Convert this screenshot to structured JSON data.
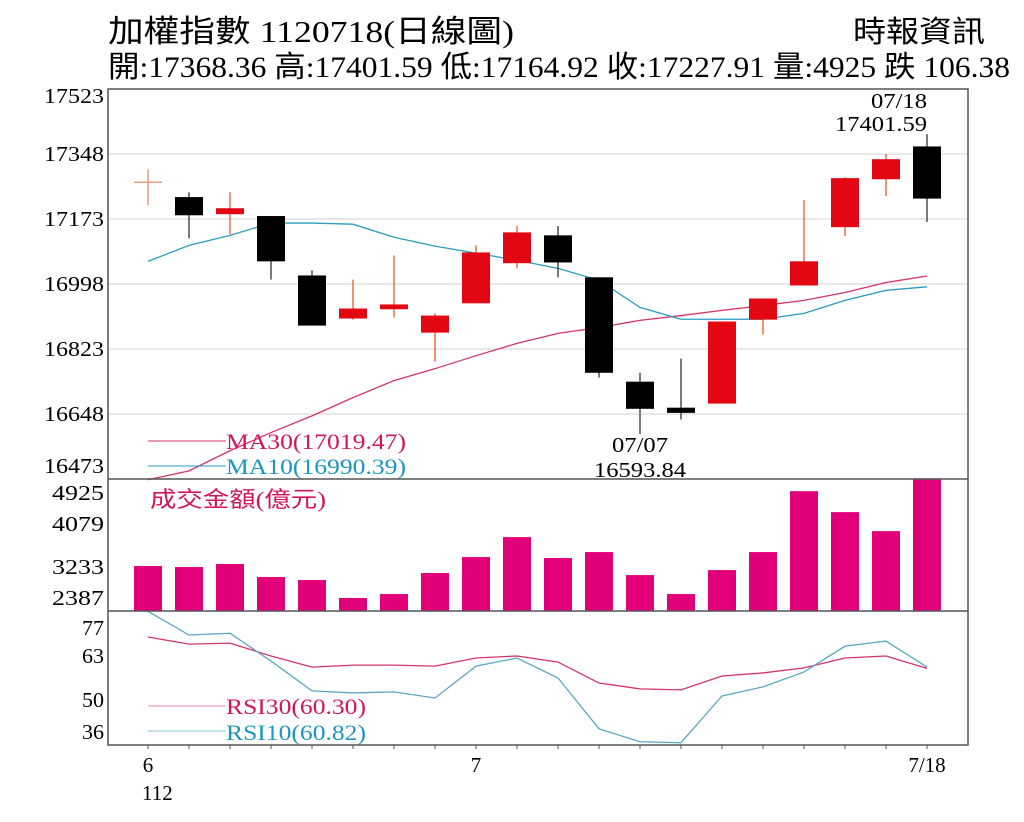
{
  "header": {
    "title": "加權指數 1120718(日線圖)",
    "source": "時報資訊",
    "stats": "開:17368.36 高:17401.59 低:17164.92 收:17227.91 量:4925 跌 106.38"
  },
  "colors": {
    "up": "#e30613",
    "down": "#000000",
    "volume": "#e2007a",
    "ma30": "#d6336c",
    "ma10": "#2a9cc0",
    "rsi30": "#d6336c",
    "rsi10": "#5aa8c0",
    "ma30_text": "#d4145a",
    "ma10_text": "#1a96c0"
  },
  "chart_data": [
    {
      "type": "candlestick",
      "title": "加權指數 1120718(日線圖)",
      "ylim": [
        16473,
        17523
      ],
      "yticks": [
        "17523",
        "17348",
        "17173",
        "16998",
        "16823",
        "16648",
        "16473"
      ],
      "ytick_values": [
        17523,
        17348,
        17173,
        16998,
        16823,
        16648,
        16473
      ],
      "ohlc": [
        [
          17272,
          17307,
          17210,
          17272
        ],
        [
          17232,
          17245,
          17121,
          17183
        ],
        [
          17186,
          17245,
          17132,
          17202
        ],
        [
          17181,
          17181,
          17010,
          17059
        ],
        [
          17021,
          17035,
          16886,
          16886
        ],
        [
          16905,
          17010,
          16902,
          16932
        ],
        [
          16930,
          17075,
          16908,
          16943
        ],
        [
          16867,
          16919,
          16789,
          16913
        ],
        [
          16946,
          17102,
          16946,
          17083
        ],
        [
          17054,
          17154,
          17040,
          17137
        ],
        [
          17129,
          17154,
          17016,
          17056
        ],
        [
          17016,
          17016,
          16746,
          16759
        ],
        [
          16735,
          16759,
          16593.84,
          16662
        ],
        [
          16665,
          16797,
          16633,
          16651
        ],
        [
          16676,
          16897,
          16676,
          16897
        ],
        [
          16902,
          16959,
          16862,
          16959
        ],
        [
          16994,
          17224,
          16994,
          17059
        ],
        [
          17151,
          17286,
          17127,
          17283
        ],
        [
          17280,
          17348,
          17235,
          17334
        ],
        [
          17368.36,
          17401.59,
          17164.92,
          17227.91
        ]
      ],
      "series": [
        {
          "name": "MA30",
          "label": "MA30(17019.47)",
          "values": [
            16471,
            16495,
            16549,
            16598,
            16643,
            16692,
            16738,
            16770,
            16805,
            16838,
            16865,
            16881,
            16900,
            16913,
            16927,
            16940,
            16954,
            16975,
            17002,
            17019.47
          ]
        },
        {
          "name": "MA10",
          "label": "MA10(16990.39)",
          "values": [
            17059,
            17102,
            17129,
            17162,
            17162,
            17159,
            17124,
            17100,
            17081,
            17062,
            17040,
            17008,
            16935,
            16903,
            16903,
            16903,
            16919,
            16954,
            16981,
            16990.39
          ]
        }
      ],
      "annotations": [
        {
          "index": 19,
          "date": "07/18",
          "value": "17401.59",
          "position": "above"
        },
        {
          "index": 12,
          "date": "07/07",
          "value": "16593.84",
          "position": "below"
        }
      ]
    },
    {
      "type": "bar",
      "title": "成交金額(億元)",
      "ylim": [
        2387,
        4925
      ],
      "yticks": [
        "4925",
        "4079",
        "3233",
        "2387"
      ],
      "ytick_values": [
        4925,
        4079,
        3233,
        2387
      ],
      "values": [
        3251,
        3232,
        3290,
        3040,
        2982,
        2637,
        2713,
        3117,
        3424,
        3808,
        3405,
        3520,
        3078,
        2713,
        3174,
        3520,
        4691,
        4288,
        3923,
        4925
      ]
    },
    {
      "type": "line",
      "title": "RSI",
      "ylim": [
        30,
        83
      ],
      "yticks": [
        "77",
        "63",
        "50",
        "36"
      ],
      "ytick_values": [
        77,
        63,
        50,
        36
      ],
      "series": [
        {
          "name": "RSI30",
          "label": "RSI30(60.30)",
          "values": [
            72.7,
            69.9,
            70.3,
            65.2,
            60.8,
            61.6,
            61.6,
            61.2,
            64.4,
            65.2,
            62.8,
            54.5,
            52.2,
            51.8,
            57.3,
            58.5,
            60.5,
            64.4,
            65.2,
            60.3
          ]
        },
        {
          "name": "RSI10",
          "label": "RSI10(60.82)",
          "values": [
            82.9,
            73.5,
            74.2,
            63.2,
            51.4,
            50.6,
            51.0,
            48.6,
            61.2,
            64.4,
            56.5,
            36.4,
            31.3,
            30.9,
            49.4,
            53.0,
            58.9,
            69.1,
            71.1,
            60.82
          ]
        }
      ]
    }
  ],
  "xaxis": {
    "labels": [
      {
        "index": 0,
        "text": "6",
        "sub": "112"
      },
      {
        "index": 8,
        "text": "7",
        "sub": ""
      },
      {
        "index": 19,
        "text": "7/18",
        "sub": ""
      }
    ],
    "count": 20
  }
}
